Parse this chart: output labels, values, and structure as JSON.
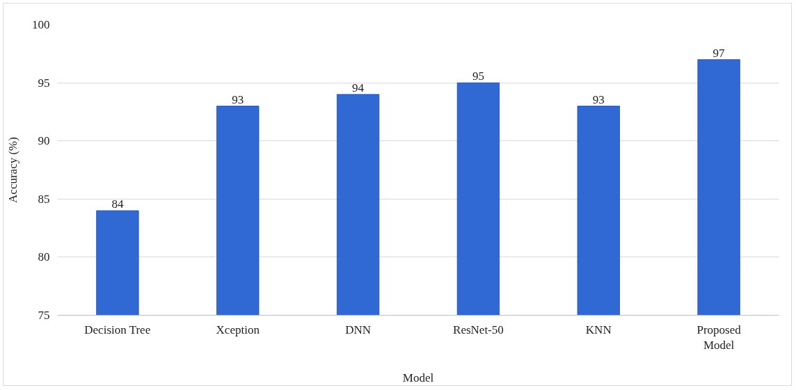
{
  "chart_data": {
    "type": "bar",
    "xlabel": "Model",
    "ylabel": "Accuracy (%)",
    "categories": [
      "Decision Tree",
      "Xception",
      "DNN",
      "ResNet-50",
      "KNN",
      "Proposed Model"
    ],
    "values": [
      84,
      93,
      94,
      95,
      93,
      97
    ],
    "color": "#3068d4",
    "ylim": [
      75,
      100
    ],
    "yticks": [
      75,
      80,
      85,
      90,
      95,
      100
    ],
    "grid": "y",
    "data_labels": true
  }
}
